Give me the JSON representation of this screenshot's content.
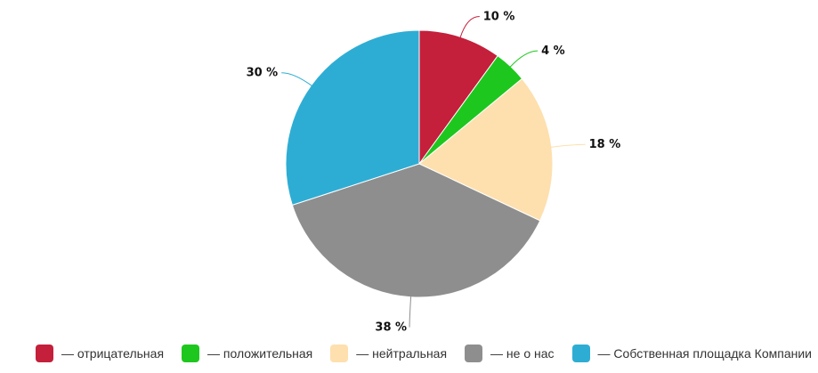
{
  "chart_data": {
    "type": "pie",
    "slices": [
      {
        "name": "— отрицательная",
        "value": 10,
        "label": "10 %",
        "color": "#c41f3b"
      },
      {
        "name": "— положительная",
        "value": 4,
        "label": "4 %",
        "color": "#1ec71e"
      },
      {
        "name": "— нейтральная",
        "value": 18,
        "label": "18 %",
        "color": "#fde0ae"
      },
      {
        "name": "— не о нас",
        "value": 38,
        "label": "38 %",
        "color": "#8e8e8e"
      },
      {
        "name": "— Собственная площадка Компании",
        "value": 30,
        "label": "30 %",
        "color": "#2eadd4"
      }
    ],
    "legend_position": "bottom",
    "start": "top",
    "direction": "clockwise"
  }
}
